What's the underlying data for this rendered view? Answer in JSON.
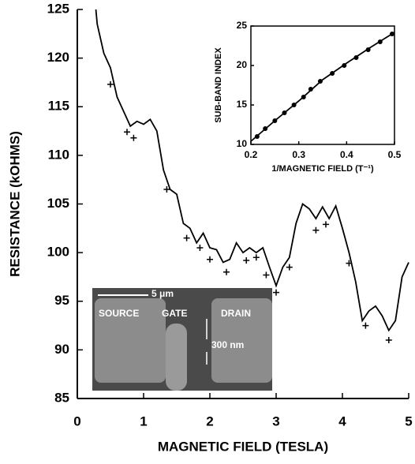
{
  "chart_data": [
    {
      "type": "line",
      "xlabel": "MAGNETIC FIELD (TESLA)",
      "ylabel": "RESISTANCE (kOHMS)",
      "xlim": [
        0,
        5
      ],
      "ylim": [
        85,
        125
      ],
      "xticks": [
        0,
        1,
        2,
        3,
        4,
        5
      ],
      "yticks": [
        85,
        90,
        95,
        100,
        105,
        110,
        115,
        120,
        125
      ],
      "color": "#000000",
      "series": [
        {
          "type": "line",
          "x": [
            0.28,
            0.3,
            0.4,
            0.5,
            0.6,
            0.7,
            0.8,
            0.9,
            1.0,
            1.1,
            1.2,
            1.3,
            1.4,
            1.5,
            1.6,
            1.7,
            1.8,
            1.9,
            2.0,
            2.1,
            2.2,
            2.3,
            2.4,
            2.5,
            2.6,
            2.7,
            2.8,
            2.9,
            3.0,
            3.1,
            3.2,
            3.3,
            3.4,
            3.5,
            3.6,
            3.7,
            3.8,
            3.9,
            4.0,
            4.1,
            4.2,
            4.3,
            4.4,
            4.5,
            4.6,
            4.7,
            4.8,
            4.9,
            5.0
          ],
          "values": [
            125,
            123.5,
            120.5,
            119,
            116,
            114.5,
            113,
            113.5,
            113.2,
            113.7,
            112.5,
            108.5,
            106.5,
            106,
            103,
            102.5,
            101,
            102,
            100.5,
            100.3,
            99,
            99.3,
            101,
            100,
            100.5,
            100,
            100.5,
            98.5,
            96.6,
            98.5,
            99.5,
            103,
            105,
            104.5,
            103.5,
            104.7,
            103.5,
            104.8,
            102.5,
            100,
            97,
            93,
            94,
            94.5,
            93.5,
            92,
            93,
            97.5,
            99
          ]
        },
        {
          "type": "scatter",
          "x": [
            0.5,
            0.75,
            0.85,
            1.35,
            1.65,
            1.85,
            2.0,
            2.25,
            2.55,
            2.7,
            2.85,
            3.0,
            3.2,
            3.6,
            3.75,
            4.1,
            4.35,
            4.7
          ],
          "values": [
            117.3,
            112.4,
            111.8,
            106.5,
            101.5,
            100.5,
            99.3,
            98,
            99.2,
            99.5,
            97.7,
            95.9,
            98.5,
            102.3,
            102.9,
            98.9,
            92.5,
            91
          ]
        }
      ],
      "annotations": [
        "5 μm",
        "SOURCE",
        "GATE",
        "DRAIN",
        "300 nm"
      ]
    },
    {
      "type": "scatter",
      "xlabel": "1/MAGNETIC FIELD (T⁻¹)",
      "ylabel": "SUB-BAND INDEX",
      "xlim": [
        0.2,
        0.5
      ],
      "ylim": [
        10,
        25
      ],
      "xticks": [
        0.2,
        0.3,
        0.4,
        0.5
      ],
      "yticks": [
        10,
        15,
        20,
        25
      ],
      "color": "#000000",
      "series": [
        {
          "type": "line",
          "x": [
            0.2,
            0.25,
            0.3,
            0.35,
            0.4,
            0.45,
            0.5
          ],
          "values": [
            10.4,
            13,
            15.5,
            18.2,
            20.3,
            22.3,
            24.2
          ]
        },
        {
          "type": "dot",
          "x": [
            0.213,
            0.23,
            0.25,
            0.27,
            0.29,
            0.31,
            0.325,
            0.345,
            0.37,
            0.395,
            0.42,
            0.445,
            0.47,
            0.495
          ],
          "values": [
            11,
            12,
            13,
            14,
            15,
            16,
            17,
            18,
            19,
            20,
            21,
            22,
            23,
            24
          ]
        }
      ]
    }
  ]
}
